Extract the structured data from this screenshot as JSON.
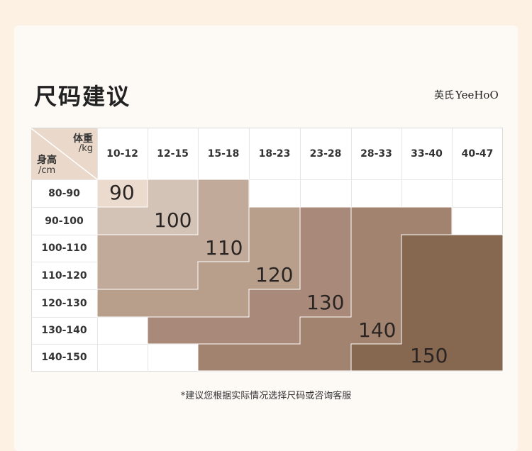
{
  "page": {
    "title": "尺码建议",
    "note": "*建议您根据实际情况选择尺码或咨询客服"
  },
  "brand": {
    "cn": "英氏",
    "en": "YeeHoO"
  },
  "table": {
    "corner": {
      "weight_label": "体重",
      "weight_unit": "/kg",
      "height_label": "身高",
      "height_unit": "/cm"
    },
    "weights": [
      "10-12",
      "12-15",
      "15-18",
      "18-23",
      "23-28",
      "28-33",
      "33-40",
      "40-47"
    ],
    "heights": [
      "80-90",
      "90-100",
      "100-110",
      "110-120",
      "120-130",
      "130-140",
      "140-150"
    ]
  },
  "sizes": [
    {
      "label": "90",
      "color": "#ebdbcf"
    },
    {
      "label": "100",
      "color": "#d3c2b6"
    },
    {
      "label": "110",
      "color": "#c1aa9a"
    },
    {
      "label": "120",
      "color": "#b79f8c"
    },
    {
      "label": "130",
      "color": "#a8897a"
    },
    {
      "label": "140",
      "color": "#a2836f"
    },
    {
      "label": "150",
      "color": "#86674f"
    }
  ],
  "colors": {
    "page_bg": "#fdf1e4",
    "card_bg": "#fdfaf6",
    "text": "#222222"
  }
}
